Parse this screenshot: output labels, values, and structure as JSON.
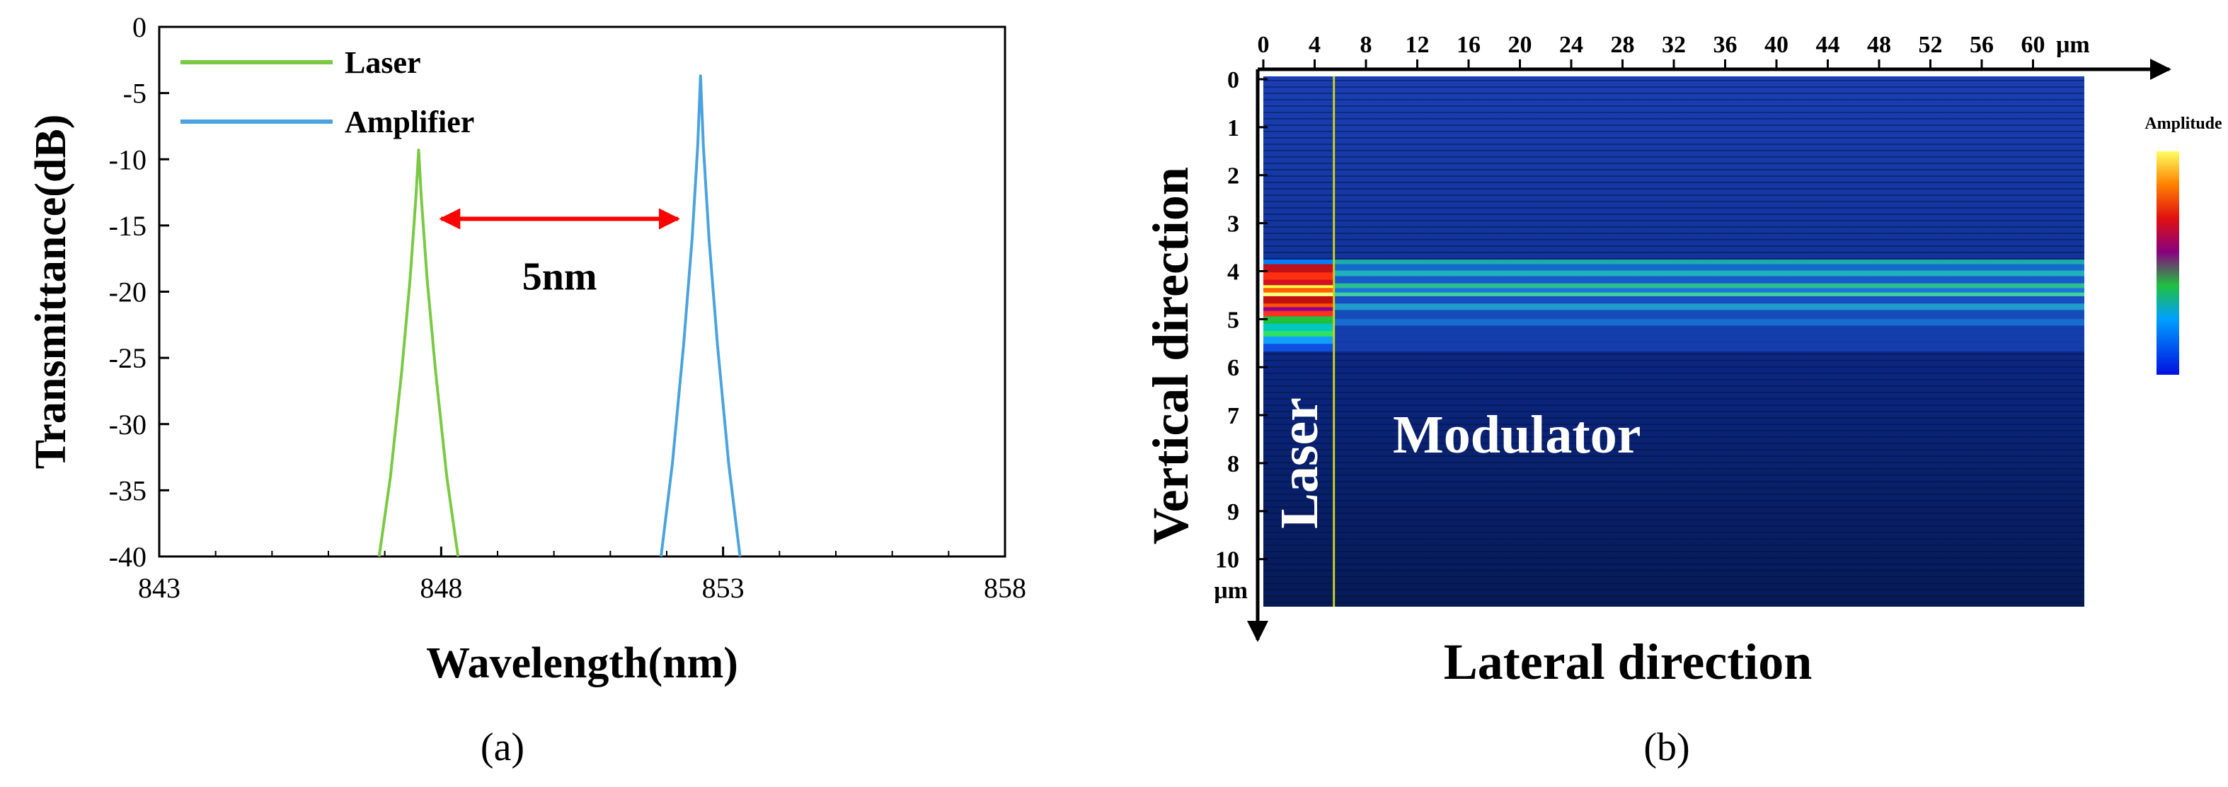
{
  "panels": {
    "a_label": "(a)",
    "b_label": "(b)"
  },
  "chart_data": [
    {
      "type": "line",
      "xlabel": "Wavelength(nm)",
      "ylabel": "Transmittance(dB)",
      "xlim": [
        843,
        858
      ],
      "ylim": [
        -40,
        0
      ],
      "xticks": [
        843,
        848,
        853,
        858
      ],
      "yticks": [
        0,
        -5,
        -10,
        -15,
        -20,
        -25,
        -30,
        -35,
        -40
      ],
      "legend_position": "top-left",
      "series": [
        {
          "name": "Laser",
          "color": "#7ac943",
          "peak_x": 847.6,
          "peak_y": -9.3,
          "x": [
            846.9,
            847.1,
            847.3,
            847.45,
            847.55,
            847.6,
            847.65,
            847.75,
            847.9,
            848.1,
            848.3
          ],
          "y": [
            -40,
            -34,
            -26,
            -19,
            -13,
            -9.3,
            -13,
            -19,
            -26,
            -34,
            -40
          ]
        },
        {
          "name": "Amplifier",
          "color": "#4aa3df",
          "peak_x": 852.6,
          "peak_y": -3.7,
          "x": [
            851.9,
            852.1,
            852.3,
            852.45,
            852.55,
            852.6,
            852.65,
            852.75,
            852.9,
            853.1,
            853.3
          ],
          "y": [
            -40,
            -33,
            -24,
            -16,
            -9,
            -3.7,
            -9,
            -16,
            -24,
            -33,
            -40
          ]
        }
      ],
      "annotations": [
        {
          "text": "5nm",
          "arrow_from_x": 848.0,
          "arrow_to_x": 852.2,
          "y": -14.5,
          "arrow_color": "#ff0000"
        }
      ]
    },
    {
      "type": "heatmap",
      "xlabel": "Lateral direction",
      "ylabel": "Vertical direction",
      "x_unit": "μm",
      "y_unit": "μm",
      "xticks": [
        0,
        4,
        8,
        12,
        16,
        20,
        24,
        28,
        32,
        36,
        40,
        44,
        48,
        52,
        56,
        60
      ],
      "yticks": [
        0,
        1,
        2,
        3,
        4,
        5,
        6,
        7,
        8,
        9,
        10
      ],
      "xlim": [
        0,
        64
      ],
      "ylim": [
        0,
        11
      ],
      "colorbar_label": "Amplitude",
      "region_labels": [
        {
          "text": "Laser",
          "x_range": [
            0,
            5.5
          ]
        },
        {
          "text": "Modulator",
          "x_range": [
            5.5,
            64
          ]
        }
      ],
      "laser_boundary_x": 5.5,
      "field_band_y": [
        3.8,
        5.7
      ]
    }
  ]
}
